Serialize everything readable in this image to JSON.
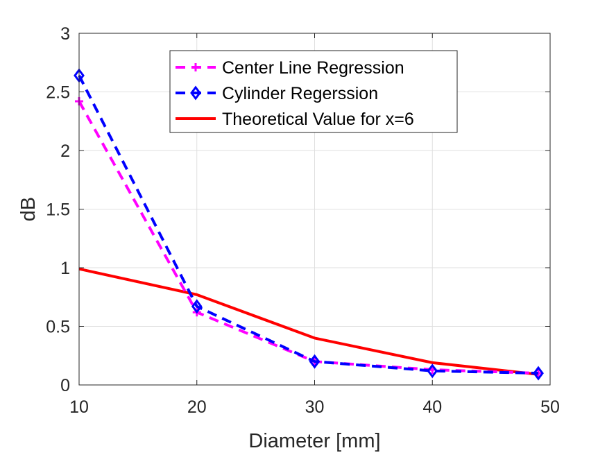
{
  "chart_data": {
    "type": "line",
    "title": "",
    "xlabel": "Diameter [mm]",
    "ylabel": "dB",
    "xlim": [
      10,
      50
    ],
    "ylim": [
      0,
      3
    ],
    "xticks": [
      "10",
      "20",
      "30",
      "40",
      "50"
    ],
    "yticks": [
      "0",
      "0.5",
      "1",
      "1.5",
      "2",
      "2.5",
      "3"
    ],
    "grid": true,
    "legend_position": "top-center",
    "series": [
      {
        "name": "Center Line Regression",
        "x": [
          10,
          20,
          30,
          40,
          49
        ],
        "y": [
          2.42,
          0.62,
          0.2,
          0.13,
          0.1
        ],
        "color": "#ff00ff",
        "line_style": "dashed",
        "marker": "plus"
      },
      {
        "name": "Cylinder Regerssion",
        "x": [
          10,
          20,
          30,
          40,
          49
        ],
        "y": [
          2.64,
          0.67,
          0.2,
          0.12,
          0.1
        ],
        "color": "#0000ff",
        "line_style": "dashed",
        "marker": "diamond"
      },
      {
        "name": "Theoretical Value for x=6",
        "x": [
          10,
          20,
          30,
          40,
          49
        ],
        "y": [
          0.99,
          0.77,
          0.4,
          0.19,
          0.09
        ],
        "color": "#ff0000",
        "line_style": "solid",
        "marker": "none"
      }
    ]
  }
}
